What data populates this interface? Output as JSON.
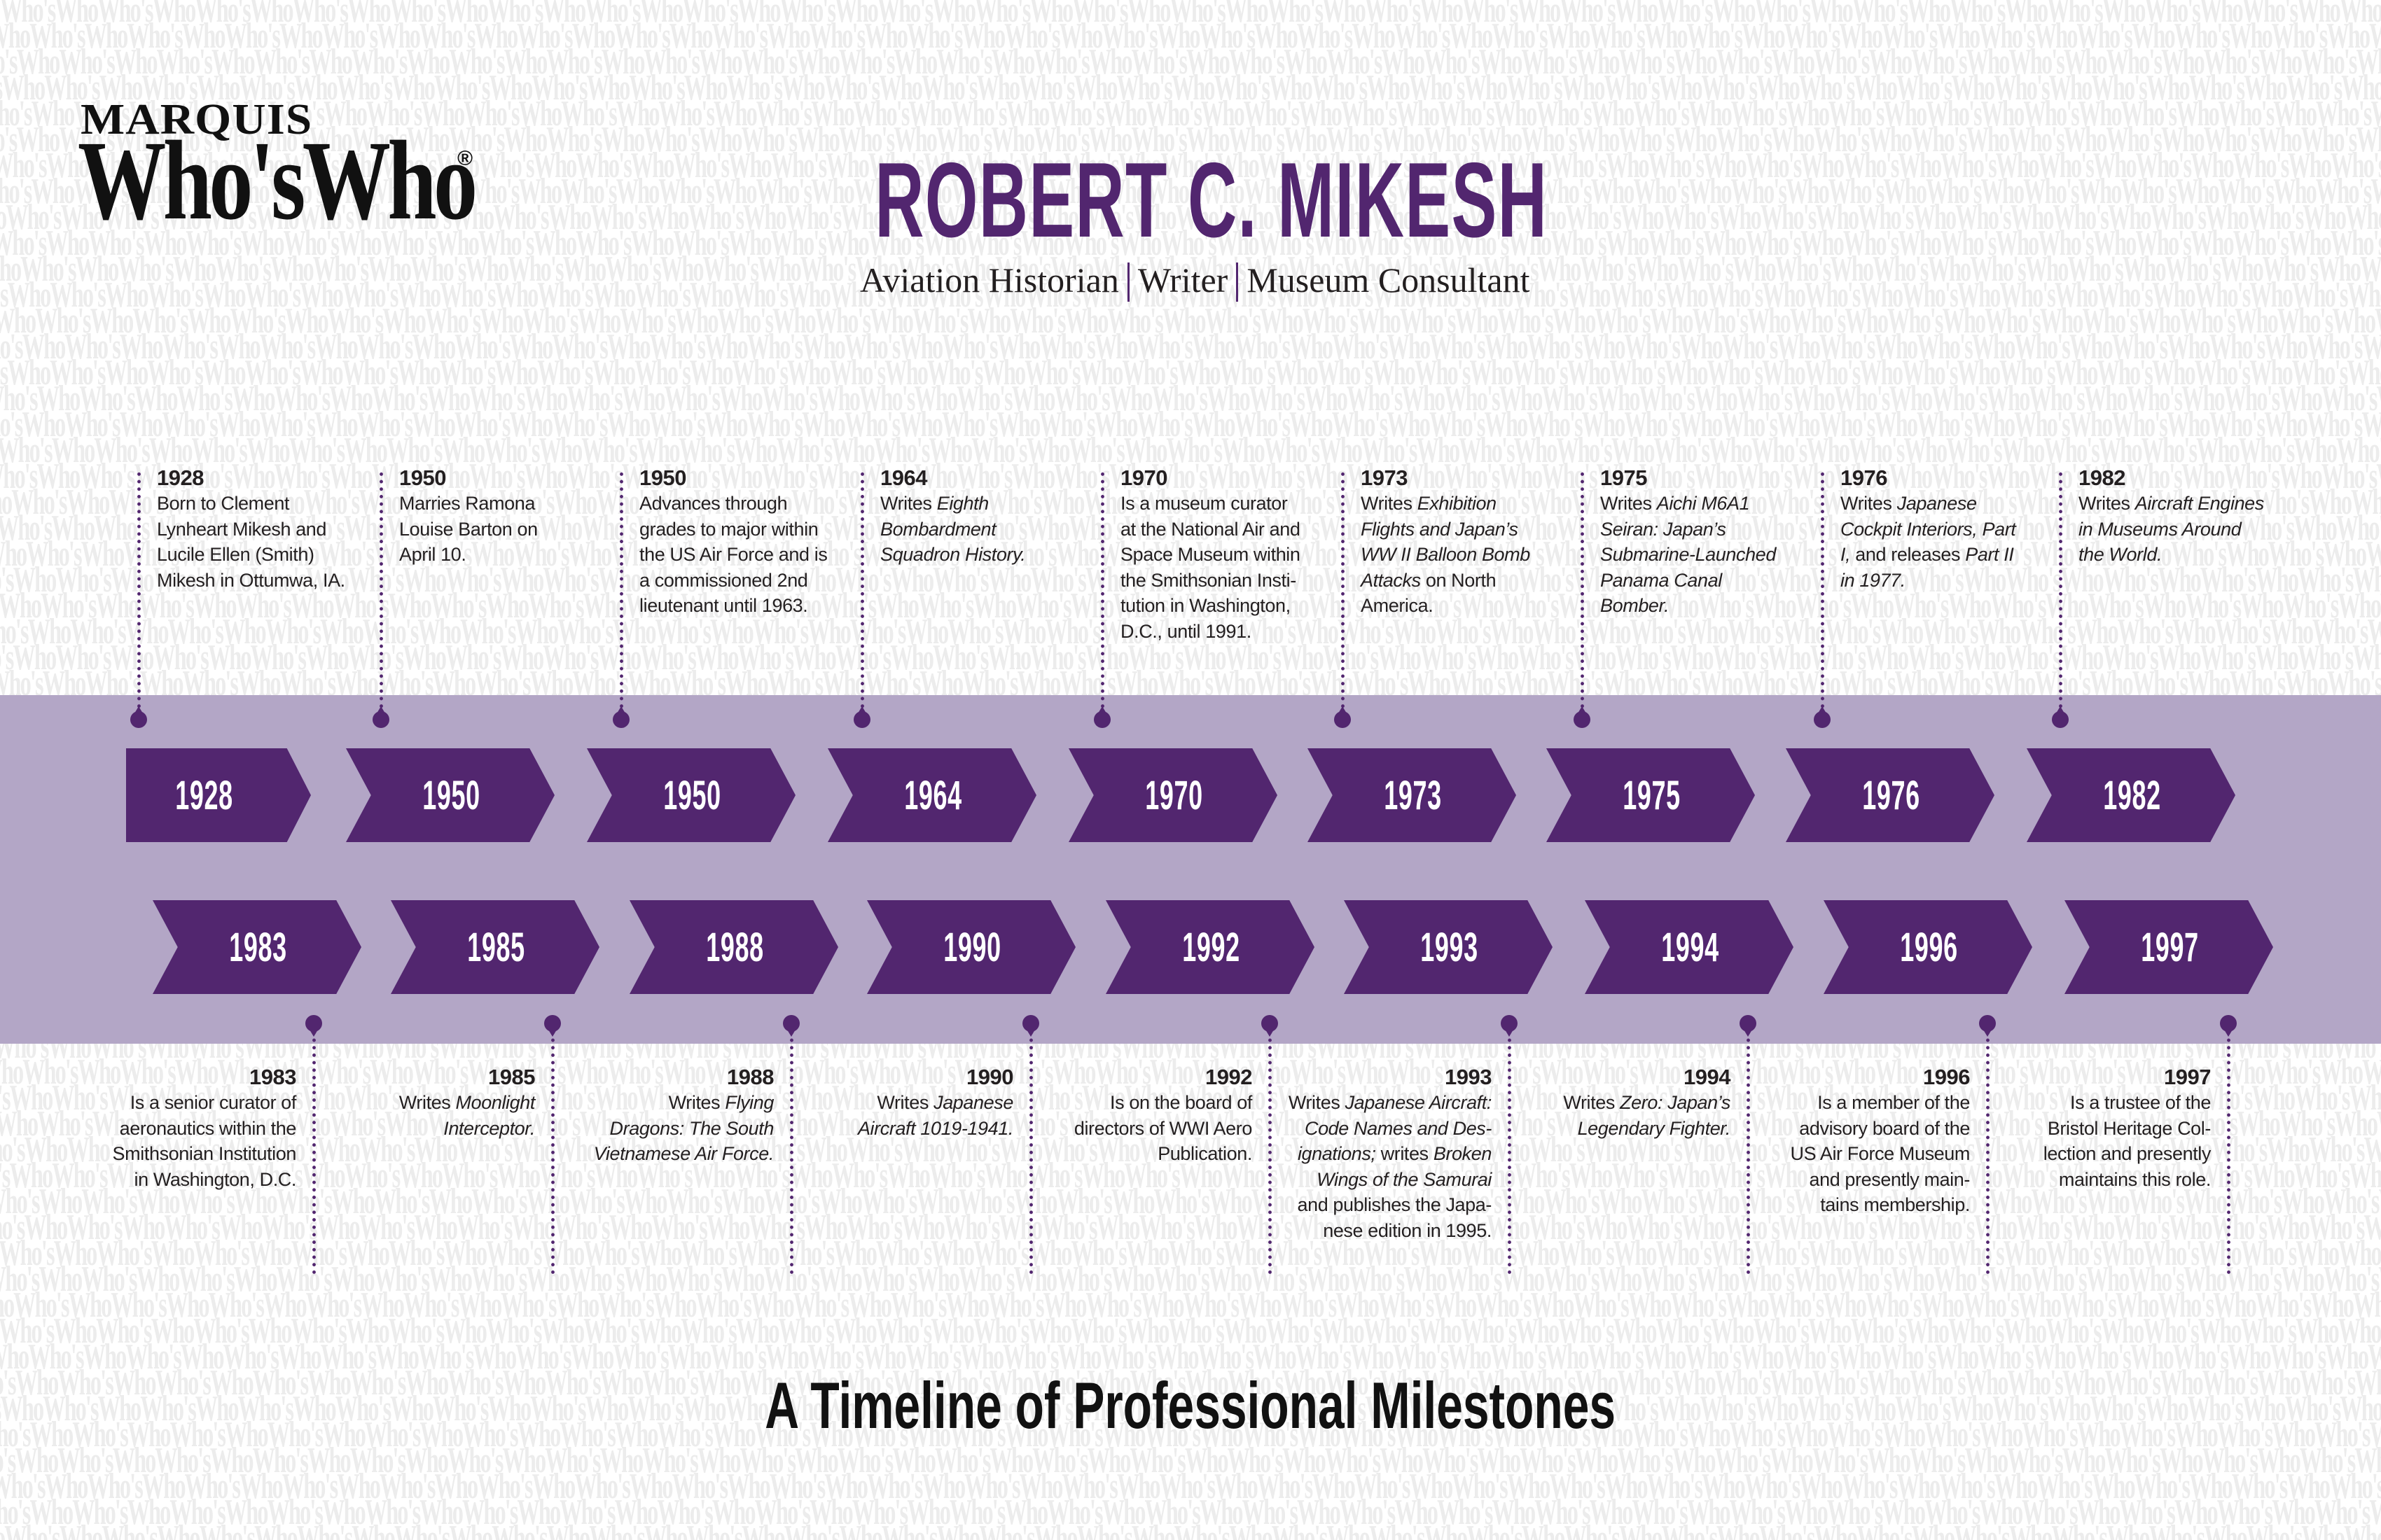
{
  "watermark": {
    "text": "Who'sWho",
    "color": "#ececec"
  },
  "logo": {
    "top": "MARQUIS",
    "main": "Who'sWho",
    "registered": "®"
  },
  "header": {
    "title": "ROBERT C. MIKESH",
    "subtitle": [
      "Aviation Historian",
      "Writer",
      "Museum Consultant"
    ]
  },
  "colors": {
    "primary_purple": "#52266f",
    "band_lavender": "#b3a6c6",
    "text": "#231f20"
  },
  "timeline": {
    "top_arrows": [
      "1928",
      "1950",
      "1950",
      "1964",
      "1970",
      "1973",
      "1975",
      "1976",
      "1982"
    ],
    "bottom_arrows": [
      "1983",
      "1985",
      "1988",
      "1990",
      "1992",
      "1993",
      "1994",
      "1996",
      "1997"
    ],
    "top_events": [
      {
        "year": "1928",
        "lines": [
          [
            {
              "t": "Born to Clement"
            }
          ],
          [
            {
              "t": "Lynheart Mikesh and"
            }
          ],
          [
            {
              "t": "Lucile Ellen (Smith)"
            }
          ],
          [
            {
              "t": "Mikesh in Ottumwa, IA."
            }
          ]
        ]
      },
      {
        "year": "1950",
        "lines": [
          [
            {
              "t": "Marries Ramona"
            }
          ],
          [
            {
              "t": "Louise Barton on"
            }
          ],
          [
            {
              "t": "April 10."
            }
          ]
        ]
      },
      {
        "year": "1950",
        "lines": [
          [
            {
              "t": "Advances through"
            }
          ],
          [
            {
              "t": "grades to major within"
            }
          ],
          [
            {
              "t": "the US Air Force and is"
            }
          ],
          [
            {
              "t": "a commissioned 2nd"
            }
          ],
          [
            {
              "t": "lieutenant until 1963."
            }
          ]
        ]
      },
      {
        "year": "1964",
        "lines": [
          [
            {
              "t": "Writes "
            },
            {
              "t": "Eighth",
              "i": true
            }
          ],
          [
            {
              "t": "Bombardment",
              "i": true
            }
          ],
          [
            {
              "t": "Squadron History.",
              "i": true
            }
          ]
        ]
      },
      {
        "year": "1970",
        "lines": [
          [
            {
              "t": "Is a museum curator"
            }
          ],
          [
            {
              "t": "at the National Air and"
            }
          ],
          [
            {
              "t": "Space Museum within"
            }
          ],
          [
            {
              "t": "the Smithsonian Insti-"
            }
          ],
          [
            {
              "t": "tution in Washington,"
            }
          ],
          [
            {
              "t": "D.C., until 1991."
            }
          ]
        ]
      },
      {
        "year": "1973",
        "lines": [
          [
            {
              "t": "Writes "
            },
            {
              "t": "Exhibition",
              "i": true
            }
          ],
          [
            {
              "t": "Flights and Japan’s",
              "i": true
            }
          ],
          [
            {
              "t": "WW II Balloon Bomb",
              "i": true
            }
          ],
          [
            {
              "t": "Attacks",
              "i": true
            },
            {
              "t": " on North"
            }
          ],
          [
            {
              "t": "America."
            }
          ]
        ]
      },
      {
        "year": "1975",
        "lines": [
          [
            {
              "t": "Writes "
            },
            {
              "t": "Aichi M6A1",
              "i": true
            }
          ],
          [
            {
              "t": "Seiran: Japan’s",
              "i": true
            }
          ],
          [
            {
              "t": "Submarine-Launched",
              "i": true
            }
          ],
          [
            {
              "t": "Panama Canal",
              "i": true
            }
          ],
          [
            {
              "t": "Bomber.",
              "i": true
            }
          ]
        ]
      },
      {
        "year": "1976",
        "lines": [
          [
            {
              "t": "Writes "
            },
            {
              "t": "Japanese",
              "i": true
            }
          ],
          [
            {
              "t": "Cockpit Interiors, Part",
              "i": true
            }
          ],
          [
            {
              "t": "I,",
              "i": true
            },
            {
              "t": " and releases "
            },
            {
              "t": "Part II",
              "i": true
            }
          ],
          [
            {
              "t": "in 1977.",
              "i": true
            }
          ]
        ]
      },
      {
        "year": "1982",
        "lines": [
          [
            {
              "t": "Writes "
            },
            {
              "t": "Aircraft Engines",
              "i": true
            }
          ],
          [
            {
              "t": "in Museums Around",
              "i": true
            }
          ],
          [
            {
              "t": "the World.",
              "i": true
            }
          ]
        ]
      }
    ],
    "bottom_events": [
      {
        "year": "1983",
        "lines": [
          [
            {
              "t": "Is a senior curator of"
            }
          ],
          [
            {
              "t": "aeronautics within the"
            }
          ],
          [
            {
              "t": "Smithsonian Institution"
            }
          ],
          [
            {
              "t": "in Washington, D.C."
            }
          ]
        ]
      },
      {
        "year": "1985",
        "lines": [
          [
            {
              "t": "Writes "
            },
            {
              "t": "Moonlight",
              "i": true
            }
          ],
          [
            {
              "t": "Interceptor.",
              "i": true
            }
          ]
        ]
      },
      {
        "year": "1988",
        "lines": [
          [
            {
              "t": "Writes "
            },
            {
              "t": "Flying",
              "i": true
            }
          ],
          [
            {
              "t": "Dragons: The South",
              "i": true
            }
          ],
          [
            {
              "t": "Vietnamese Air Force.",
              "i": true
            }
          ]
        ]
      },
      {
        "year": "1990",
        "lines": [
          [
            {
              "t": "Writes "
            },
            {
              "t": "Japanese",
              "i": true
            }
          ],
          [
            {
              "t": "Aircraft 1019-1941.",
              "i": true
            }
          ]
        ]
      },
      {
        "year": "1992",
        "lines": [
          [
            {
              "t": "Is on the board of"
            }
          ],
          [
            {
              "t": "directors of WWI Aero"
            }
          ],
          [
            {
              "t": "Publication."
            }
          ]
        ]
      },
      {
        "year": "1993",
        "lines": [
          [
            {
              "t": "Writes "
            },
            {
              "t": "Japanese Aircraft:",
              "i": true
            }
          ],
          [
            {
              "t": "Code Names and Des-",
              "i": true
            }
          ],
          [
            {
              "t": "ignations;",
              "i": true
            },
            {
              "t": " writes "
            },
            {
              "t": "Broken",
              "i": true
            }
          ],
          [
            {
              "t": "Wings of the Samurai",
              "i": true
            }
          ],
          [
            {
              "t": "and publishes the Japa-"
            }
          ],
          [
            {
              "t": "nese edition in 1995."
            }
          ]
        ]
      },
      {
        "year": "1994",
        "lines": [
          [
            {
              "t": "Writes "
            },
            {
              "t": "Zero: Japan’s",
              "i": true
            }
          ],
          [
            {
              "t": "Legendary Fighter.",
              "i": true
            }
          ]
        ]
      },
      {
        "year": "1996",
        "lines": [
          [
            {
              "t": "Is a member of the"
            }
          ],
          [
            {
              "t": "advisory board of the"
            }
          ],
          [
            {
              "t": "US Air Force Museum"
            }
          ],
          [
            {
              "t": "and presently main-"
            }
          ],
          [
            {
              "t": "tains membership."
            }
          ]
        ]
      },
      {
        "year": "1997",
        "lines": [
          [
            {
              "t": "Is a trustee of the"
            }
          ],
          [
            {
              "t": "Bristol Heritage Col-"
            }
          ],
          [
            {
              "t": "lection and presently"
            }
          ],
          [
            {
              "t": "maintains this role."
            }
          ]
        ]
      }
    ]
  },
  "footer": {
    "title": "A Timeline of Professional Milestones"
  }
}
